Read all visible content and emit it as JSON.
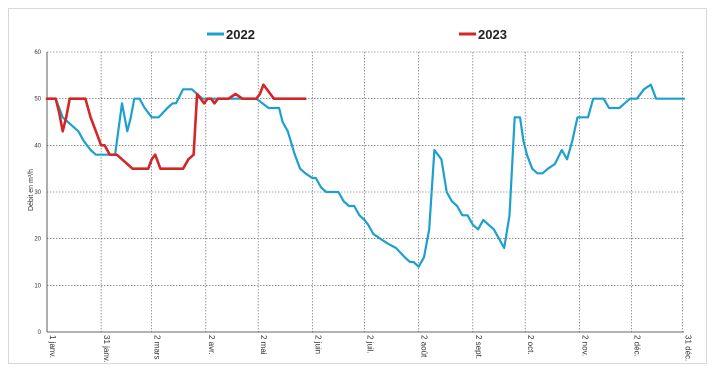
{
  "chart_data": {
    "type": "line",
    "title": "",
    "xlabel": "",
    "ylabel": "Débit en m³/h",
    "ylim": [
      0,
      60
    ],
    "xlim": [
      0,
      365
    ],
    "grid": true,
    "legend_position": "top",
    "y_ticks": [
      0,
      10,
      20,
      30,
      40,
      50,
      60
    ],
    "x_ticks": [
      {
        "day": 0,
        "label": "1 janv."
      },
      {
        "day": 31,
        "label": "31 janv."
      },
      {
        "day": 60,
        "label": "2 mars"
      },
      {
        "day": 91,
        "label": "2 avr."
      },
      {
        "day": 121,
        "label": "2 mai"
      },
      {
        "day": 152,
        "label": "2 juin"
      },
      {
        "day": 182,
        "label": "2 juil."
      },
      {
        "day": 213,
        "label": "2 août"
      },
      {
        "day": 244,
        "label": "2 sept."
      },
      {
        "day": 274,
        "label": "2 oct."
      },
      {
        "day": 305,
        "label": "2 nov."
      },
      {
        "day": 335,
        "label": "2 déc."
      },
      {
        "day": 364,
        "label": "31 déc."
      }
    ],
    "series": [
      {
        "name": "2022",
        "color": "#1ea0cf",
        "x": [
          0,
          5,
          9,
          12,
          15,
          18,
          21,
          25,
          28,
          32,
          35,
          39,
          43,
          46,
          48,
          50,
          53,
          56,
          58,
          60,
          64,
          69,
          72,
          74,
          78,
          83,
          86,
          89,
          92,
          94,
          97,
          105,
          112,
          116,
          120,
          127,
          133,
          135,
          138,
          142,
          145,
          148,
          152,
          154,
          157,
          160,
          164,
          167,
          170,
          173,
          176,
          179,
          182,
          184,
          187,
          191,
          195,
          200,
          205,
          208,
          210,
          213,
          216,
          219,
          222,
          226,
          229,
          232,
          235,
          238,
          241,
          244,
          247,
          250,
          253,
          256,
          259,
          262,
          265,
          268,
          271,
          273,
          275,
          278,
          281,
          284,
          287,
          291,
          295,
          298,
          301,
          304,
          307,
          310,
          313,
          316,
          319,
          322,
          325,
          328,
          331,
          334,
          338,
          342,
          346,
          349,
          351,
          353,
          356,
          360,
          365
        ],
        "y": [
          50,
          50,
          46,
          45,
          44,
          43,
          41,
          39,
          38,
          38,
          38,
          38,
          49,
          43,
          46,
          50,
          50,
          48,
          47,
          46,
          46,
          48,
          49,
          49,
          52,
          52,
          51,
          50,
          50,
          50,
          50,
          50,
          50,
          50,
          50,
          48,
          48,
          45,
          43,
          38,
          35,
          34,
          33,
          33,
          31,
          30,
          30,
          30,
          28,
          27,
          27,
          25,
          24,
          23,
          21,
          20,
          19,
          18,
          16,
          15,
          15,
          14,
          16,
          22,
          39,
          37,
          30,
          28,
          27,
          25,
          25,
          23,
          22,
          24,
          23,
          22,
          20,
          18,
          25,
          46,
          46,
          41,
          38,
          35,
          34,
          34,
          35,
          36,
          39,
          37,
          41,
          46,
          46,
          46,
          50,
          50,
          50,
          48,
          48,
          48,
          49,
          50,
          50,
          52,
          53,
          50,
          50,
          50,
          50,
          50,
          50
        ]
      },
      {
        "name": "2023",
        "color": "#d32626",
        "x": [
          0,
          5,
          7,
          9,
          11,
          13,
          15,
          17,
          19,
          22,
          25,
          28,
          31,
          33,
          36,
          40,
          43,
          46,
          49,
          52,
          55,
          58,
          60,
          62,
          65,
          68,
          72,
          75,
          78,
          81,
          84,
          86,
          90,
          92,
          94,
          96,
          98,
          101,
          104,
          108,
          112,
          114,
          116,
          118,
          120,
          122,
          124,
          126,
          128,
          130,
          132,
          135,
          138,
          141,
          145,
          148
        ],
        "y": [
          50,
          50,
          47,
          43,
          46,
          50,
          50,
          50,
          50,
          50,
          46,
          43,
          40,
          40,
          38,
          38,
          37,
          36,
          35,
          35,
          35,
          35,
          37,
          38,
          35,
          35,
          35,
          35,
          35,
          37,
          38,
          51,
          49,
          50,
          50,
          49,
          50,
          50,
          50,
          51,
          50,
          50,
          50,
          50,
          50,
          51,
          53,
          52,
          51,
          50,
          50,
          50,
          50,
          50,
          50,
          50
        ]
      }
    ]
  }
}
